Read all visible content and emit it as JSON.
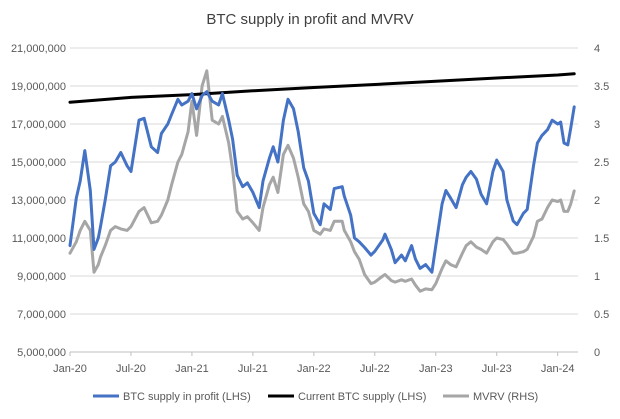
{
  "chart_data": {
    "type": "line",
    "title": "BTC supply in profit and MVRV",
    "x_tick_labels": [
      "Jan-20",
      "Jul-20",
      "Jan-21",
      "Jul-21",
      "Jan-22",
      "Jul-22",
      "Jan-23",
      "Jul-23",
      "Jan-24"
    ],
    "x_tick_values": [
      "2020-01",
      "2020-07",
      "2021-01",
      "2021-07",
      "2022-01",
      "2022-07",
      "2023-01",
      "2023-07",
      "2024-01"
    ],
    "x_range": [
      "2020-01",
      "2024-03"
    ],
    "y_left": {
      "min": 5000000,
      "max": 21000000,
      "ticks": [
        5000000,
        7000000,
        9000000,
        11000000,
        13000000,
        15000000,
        17000000,
        19000000,
        21000000
      ],
      "tick_labels": [
        "5,000,000",
        "7,000,000",
        "9,000,000",
        "11,000,000",
        "13,000,000",
        "15,000,000",
        "17,000,000",
        "19,000,000",
        "21,000,000"
      ]
    },
    "y_right": {
      "min": 0,
      "max": 4,
      "ticks": [
        0,
        0.5,
        1,
        1.5,
        2,
        2.5,
        3,
        3.5,
        4
      ],
      "tick_labels": [
        "0",
        "0.5",
        "1",
        "1.5",
        "2",
        "2.5",
        "3",
        "3.5",
        "4"
      ]
    },
    "grid": "horizontal",
    "legend_position": "bottom",
    "series": [
      {
        "name": "BTC supply in profit (LHS)",
        "axis": "left",
        "color": "#4472C4",
        "points": [
          [
            "2020-01",
            10600000
          ],
          [
            "2020-01-20",
            13100000
          ],
          [
            "2020-02",
            14000000
          ],
          [
            "2020-02-15",
            15600000
          ],
          [
            "2020-03",
            13500000
          ],
          [
            "2020-03-12",
            10400000
          ],
          [
            "2020-03-25",
            11000000
          ],
          [
            "2020-04",
            11600000
          ],
          [
            "2020-04-15",
            13000000
          ],
          [
            "2020-05",
            14800000
          ],
          [
            "2020-05-15",
            15000000
          ],
          [
            "2020-06",
            15500000
          ],
          [
            "2020-06-20",
            14800000
          ],
          [
            "2020-07",
            14500000
          ],
          [
            "2020-07-25",
            17200000
          ],
          [
            "2020-08-10",
            17300000
          ],
          [
            "2020-09",
            15800000
          ],
          [
            "2020-09-20",
            15500000
          ],
          [
            "2020-10",
            16500000
          ],
          [
            "2020-10-20",
            17000000
          ],
          [
            "2020-11",
            17500000
          ],
          [
            "2020-11-20",
            18300000
          ],
          [
            "2020-12",
            18000000
          ],
          [
            "2020-12-20",
            18200000
          ],
          [
            "2021-01",
            18600000
          ],
          [
            "2021-01-15",
            17800000
          ],
          [
            "2021-02",
            18500000
          ],
          [
            "2021-02-15",
            18700000
          ],
          [
            "2021-03",
            18200000
          ],
          [
            "2021-03-20",
            18000000
          ],
          [
            "2021-04",
            18600000
          ],
          [
            "2021-04-20",
            17200000
          ],
          [
            "2021-05",
            16200000
          ],
          [
            "2021-05-15",
            14300000
          ],
          [
            "2021-06",
            13700000
          ],
          [
            "2021-06-15",
            13900000
          ],
          [
            "2021-07",
            13400000
          ],
          [
            "2021-07-20",
            12600000
          ],
          [
            "2021-08",
            14000000
          ],
          [
            "2021-08-20",
            15200000
          ],
          [
            "2021-09",
            15800000
          ],
          [
            "2021-09-15",
            15000000
          ],
          [
            "2021-10",
            17200000
          ],
          [
            "2021-10-15",
            18300000
          ],
          [
            "2021-11",
            17800000
          ],
          [
            "2021-11-15",
            16600000
          ],
          [
            "2021-12",
            14700000
          ],
          [
            "2021-12-15",
            14000000
          ],
          [
            "2022-01",
            12300000
          ],
          [
            "2022-01-20",
            11700000
          ],
          [
            "2022-02",
            12800000
          ],
          [
            "2022-02-20",
            12500000
          ],
          [
            "2022-03",
            13600000
          ],
          [
            "2022-03-25",
            13700000
          ],
          [
            "2022-04",
            13200000
          ],
          [
            "2022-04-20",
            12200000
          ],
          [
            "2022-05",
            11000000
          ],
          [
            "2022-05-15",
            10800000
          ],
          [
            "2022-06",
            10500000
          ],
          [
            "2022-06-20",
            10100000
          ],
          [
            "2022-07",
            10300000
          ],
          [
            "2022-07-25",
            10900000
          ],
          [
            "2022-08",
            11200000
          ],
          [
            "2022-08-20",
            10400000
          ],
          [
            "2022-09",
            9700000
          ],
          [
            "2022-09-20",
            10100000
          ],
          [
            "2022-10",
            9800000
          ],
          [
            "2022-10-20",
            10600000
          ],
          [
            "2022-11",
            9900000
          ],
          [
            "2022-11-15",
            9400000
          ],
          [
            "2022-12",
            9600000
          ],
          [
            "2022-12-20",
            9200000
          ],
          [
            "2023-01",
            10600000
          ],
          [
            "2023-01-20",
            12800000
          ],
          [
            "2023-02",
            13500000
          ],
          [
            "2023-02-15",
            13100000
          ],
          [
            "2023-03",
            12600000
          ],
          [
            "2023-03-20",
            13800000
          ],
          [
            "2023-04",
            14200000
          ],
          [
            "2023-04-15",
            14500000
          ],
          [
            "2023-05",
            14100000
          ],
          [
            "2023-05-15",
            13300000
          ],
          [
            "2023-06",
            12800000
          ],
          [
            "2023-06-20",
            14500000
          ],
          [
            "2023-07",
            15100000
          ],
          [
            "2023-07-20",
            14500000
          ],
          [
            "2023-08",
            13000000
          ],
          [
            "2023-08-20",
            11900000
          ],
          [
            "2023-09",
            11700000
          ],
          [
            "2023-09-20",
            12300000
          ],
          [
            "2023-10",
            12500000
          ],
          [
            "2023-10-20",
            14800000
          ],
          [
            "2023-11",
            16000000
          ],
          [
            "2023-11-15",
            16400000
          ],
          [
            "2023-12",
            16700000
          ],
          [
            "2023-12-15",
            17200000
          ],
          [
            "2024-01",
            17000000
          ],
          [
            "2024-01-10",
            17100000
          ],
          [
            "2024-01-20",
            16000000
          ],
          [
            "2024-02",
            15900000
          ],
          [
            "2024-02-10",
            16800000
          ],
          [
            "2024-02-20",
            17900000
          ]
        ]
      },
      {
        "name": "Current BTC supply (LHS)",
        "axis": "left",
        "color": "#000000",
        "points": [
          [
            "2020-01",
            18150000
          ],
          [
            "2020-07",
            18400000
          ],
          [
            "2021-01",
            18550000
          ],
          [
            "2021-07",
            18750000
          ],
          [
            "2022-01",
            18920000
          ],
          [
            "2022-07",
            19080000
          ],
          [
            "2023-01",
            19250000
          ],
          [
            "2023-07",
            19420000
          ],
          [
            "2024-01",
            19580000
          ],
          [
            "2024-02-20",
            19640000
          ]
        ]
      },
      {
        "name": "MVRV (RHS)",
        "axis": "right",
        "color": "#A6A6A6",
        "points": [
          [
            "2020-01",
            1.3
          ],
          [
            "2020-01-20",
            1.45
          ],
          [
            "2020-02",
            1.6
          ],
          [
            "2020-02-15",
            1.72
          ],
          [
            "2020-03",
            1.6
          ],
          [
            "2020-03-12",
            1.05
          ],
          [
            "2020-03-25",
            1.15
          ],
          [
            "2020-04",
            1.25
          ],
          [
            "2020-04-15",
            1.4
          ],
          [
            "2020-05",
            1.6
          ],
          [
            "2020-05-15",
            1.65
          ],
          [
            "2020-06",
            1.62
          ],
          [
            "2020-06-20",
            1.6
          ],
          [
            "2020-07",
            1.65
          ],
          [
            "2020-07-25",
            1.85
          ],
          [
            "2020-08-10",
            1.9
          ],
          [
            "2020-09",
            1.7
          ],
          [
            "2020-09-20",
            1.72
          ],
          [
            "2020-10",
            1.8
          ],
          [
            "2020-10-20",
            2.0
          ],
          [
            "2020-11",
            2.2
          ],
          [
            "2020-11-20",
            2.5
          ],
          [
            "2020-12",
            2.6
          ],
          [
            "2020-12-20",
            2.9
          ],
          [
            "2021-01",
            3.3
          ],
          [
            "2021-01-15",
            2.85
          ],
          [
            "2021-02",
            3.5
          ],
          [
            "2021-02-15",
            3.7
          ],
          [
            "2021-03",
            3.05
          ],
          [
            "2021-03-20",
            3.0
          ],
          [
            "2021-04",
            3.1
          ],
          [
            "2021-04-20",
            2.75
          ],
          [
            "2021-05",
            2.4
          ],
          [
            "2021-05-15",
            1.85
          ],
          [
            "2021-06",
            1.75
          ],
          [
            "2021-06-15",
            1.78
          ],
          [
            "2021-07",
            1.7
          ],
          [
            "2021-07-20",
            1.6
          ],
          [
            "2021-08",
            1.9
          ],
          [
            "2021-08-20",
            2.2
          ],
          [
            "2021-09",
            2.3
          ],
          [
            "2021-09-15",
            2.1
          ],
          [
            "2021-10",
            2.6
          ],
          [
            "2021-10-15",
            2.72
          ],
          [
            "2021-11",
            2.55
          ],
          [
            "2021-11-15",
            2.3
          ],
          [
            "2021-12",
            1.95
          ],
          [
            "2021-12-15",
            1.85
          ],
          [
            "2022-01",
            1.6
          ],
          [
            "2022-01-20",
            1.55
          ],
          [
            "2022-02",
            1.62
          ],
          [
            "2022-02-20",
            1.6
          ],
          [
            "2022-03",
            1.72
          ],
          [
            "2022-03-25",
            1.72
          ],
          [
            "2022-04",
            1.6
          ],
          [
            "2022-04-20",
            1.45
          ],
          [
            "2022-05",
            1.32
          ],
          [
            "2022-05-15",
            1.22
          ],
          [
            "2022-06",
            1.02
          ],
          [
            "2022-06-20",
            0.9
          ],
          [
            "2022-07",
            0.92
          ],
          [
            "2022-07-25",
            1.0
          ],
          [
            "2022-08",
            1.02
          ],
          [
            "2022-08-20",
            0.94
          ],
          [
            "2022-09",
            0.92
          ],
          [
            "2022-09-20",
            0.95
          ],
          [
            "2022-10",
            0.93
          ],
          [
            "2022-10-20",
            0.96
          ],
          [
            "2022-11",
            0.88
          ],
          [
            "2022-11-15",
            0.8
          ],
          [
            "2022-12",
            0.83
          ],
          [
            "2022-12-20",
            0.82
          ],
          [
            "2023-01",
            0.9
          ],
          [
            "2023-01-20",
            1.1
          ],
          [
            "2023-02",
            1.2
          ],
          [
            "2023-02-15",
            1.15
          ],
          [
            "2023-03",
            1.12
          ],
          [
            "2023-03-20",
            1.3
          ],
          [
            "2023-04",
            1.4
          ],
          [
            "2023-04-15",
            1.45
          ],
          [
            "2023-05",
            1.38
          ],
          [
            "2023-05-15",
            1.35
          ],
          [
            "2023-06",
            1.3
          ],
          [
            "2023-06-20",
            1.45
          ],
          [
            "2023-07",
            1.5
          ],
          [
            "2023-07-20",
            1.48
          ],
          [
            "2023-08",
            1.42
          ],
          [
            "2023-08-20",
            1.3
          ],
          [
            "2023-09",
            1.3
          ],
          [
            "2023-09-20",
            1.32
          ],
          [
            "2023-10",
            1.35
          ],
          [
            "2023-10-20",
            1.52
          ],
          [
            "2023-11",
            1.72
          ],
          [
            "2023-11-15",
            1.75
          ],
          [
            "2023-12",
            1.9
          ],
          [
            "2023-12-15",
            2.0
          ],
          [
            "2024-01",
            1.98
          ],
          [
            "2024-01-10",
            2.0
          ],
          [
            "2024-01-20",
            1.85
          ],
          [
            "2024-02",
            1.85
          ],
          [
            "2024-02-10",
            1.95
          ],
          [
            "2024-02-20",
            2.12
          ]
        ]
      }
    ]
  }
}
